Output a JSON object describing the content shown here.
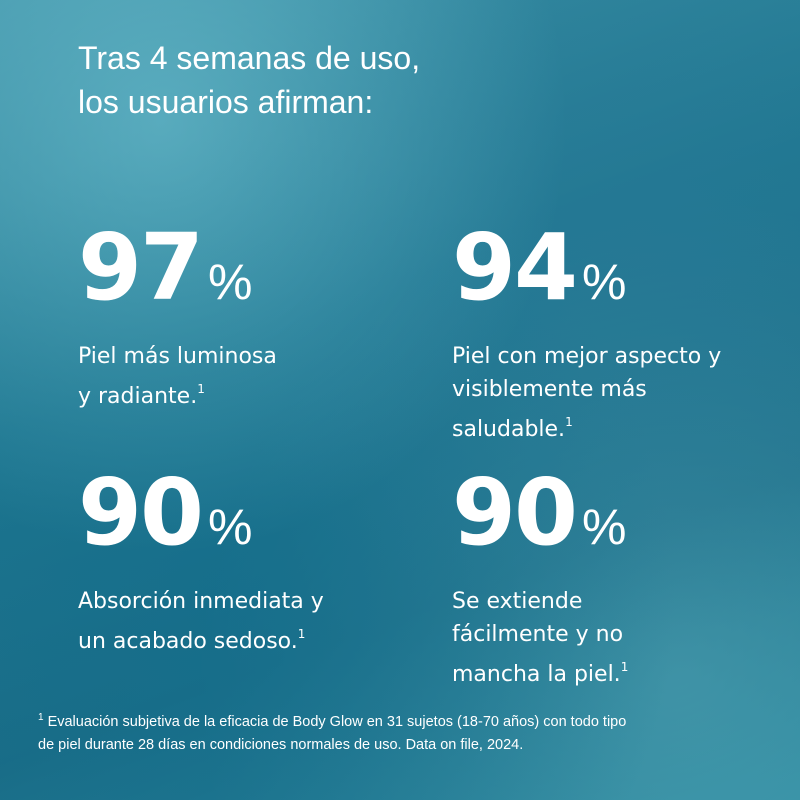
{
  "heading": [
    "Tras 4 semanas de uso,",
    "los usuarios afirman:"
  ],
  "stats": [
    {
      "value": "97",
      "unit": "%",
      "lines": [
        "Piel más luminosa",
        "y radiante."
      ],
      "note": "1"
    },
    {
      "value": "94",
      "unit": "%",
      "lines": [
        "Piel con mejor aspecto y",
        "visiblemente más",
        "saludable."
      ],
      "note": "1"
    },
    {
      "value": "90",
      "unit": "%",
      "lines": [
        "Absorción inmediata y",
        "un acabado sedoso."
      ],
      "note": "1"
    },
    {
      "value": "90",
      "unit": "%",
      "lines": [
        "Se extiende",
        "fácilmente y no",
        "mancha la piel."
      ],
      "note": "1"
    }
  ],
  "footnote": {
    "marker": "1",
    "lines": [
      "Evaluación subjetiva de la eficacia de Body Glow en 31 sujetos (18-70 años) con todo tipo",
      "de piel durante 28 días en condiciones normales de uso.  Data on file, 2024."
    ]
  }
}
